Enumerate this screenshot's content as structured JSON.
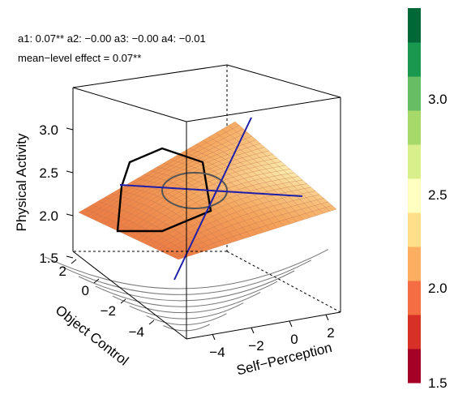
{
  "annotations": {
    "coefficients": "a1: 0.07**   a2: −0.00   a3: −0.00   a4: −0.01",
    "mean_level": "mean−level effect = 0.07**"
  },
  "chart_data": {
    "type": "surface3d",
    "title": "",
    "zlabel": "Physical Activity",
    "xlabel": "Self−Perception",
    "ylabel": "Object Control",
    "z_ticks": [
      "1.5",
      "2.0",
      "2.5",
      "3.0"
    ],
    "x_ticks": [
      "−4",
      "−2",
      "0",
      "2"
    ],
    "y_ticks": [
      "−4",
      "−2",
      "0",
      "2"
    ],
    "surface_description": "Response surface with rising ridge along line of congruence; highest values at high Self-Perception and high Object Control",
    "legend": {
      "labels": [
        "1.5",
        "2.0",
        "2.5",
        "3.0"
      ],
      "colors": [
        "#a50026",
        "#d73027",
        "#f46d43",
        "#fdae61",
        "#fee08b",
        "#ffffbf",
        "#d9ef8b",
        "#a6d96a",
        "#66bd63",
        "#1a9850",
        "#006837"
      ]
    },
    "colors": {
      "surface_low": "#e86a3a",
      "surface_mid": "#f4a55d",
      "surface_high": "#fbe7a8",
      "line_of_congruence": "#1e1ea8",
      "hull": "#000000",
      "bagplot_inner": "#555555"
    }
  }
}
